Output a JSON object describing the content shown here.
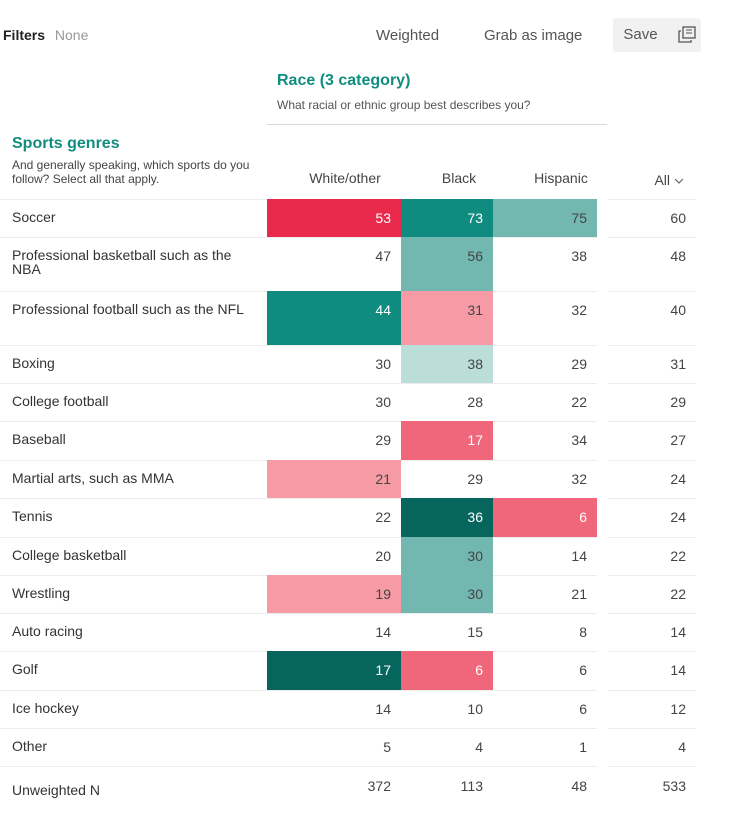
{
  "filters": {
    "label": "Filters",
    "value": "None"
  },
  "toolbar": {
    "weighted_label": "Weighted",
    "grab_label": "Grab as image",
    "save_label": "Save"
  },
  "column_variable": {
    "title": "Race (3 category)",
    "question": "What racial or ethnic group best describes you?"
  },
  "row_variable": {
    "title": "Sports genres",
    "question": "And generally speaking, which sports do you follow? Select all that apply."
  },
  "columns": [
    "White/other",
    "Black",
    "Hispanic"
  ],
  "all_label": "All",
  "colors": {
    "accent": "#118d80",
    "strong_red": "#ea2a4d",
    "red": "#f0667a",
    "light_red": "#f69ba6",
    "dark_teal": "#06665e",
    "teal": "#0f8b80",
    "light_teal": "#72b7b0",
    "pale_teal": "#bcdedb"
  },
  "rows": [
    {
      "label": "Soccer",
      "values": [
        "53",
        "73",
        "75"
      ],
      "all": "60",
      "shade": [
        "strong_red",
        "teal",
        "light_teal"
      ]
    },
    {
      "label": "Professional basketball such as the NBA",
      "values": [
        "47",
        "56",
        "38"
      ],
      "all": "48",
      "shade": [
        "",
        "light_teal",
        ""
      ]
    },
    {
      "label": "Professional football such as the NFL",
      "values": [
        "44",
        "31",
        "32"
      ],
      "all": "40",
      "shade": [
        "teal",
        "light_red",
        ""
      ]
    },
    {
      "label": "Boxing",
      "values": [
        "30",
        "38",
        "29"
      ],
      "all": "31",
      "shade": [
        "",
        "pale_teal",
        ""
      ]
    },
    {
      "label": "College football",
      "values": [
        "30",
        "28",
        "22"
      ],
      "all": "29",
      "shade": [
        "",
        "",
        ""
      ]
    },
    {
      "label": "Baseball",
      "values": [
        "29",
        "17",
        "34"
      ],
      "all": "27",
      "shade": [
        "",
        "red",
        ""
      ]
    },
    {
      "label": "Martial arts, such as MMA",
      "values": [
        "21",
        "29",
        "32"
      ],
      "all": "24",
      "shade": [
        "light_red",
        "",
        ""
      ]
    },
    {
      "label": "Tennis",
      "values": [
        "22",
        "36",
        "6"
      ],
      "all": "24",
      "shade": [
        "",
        "dark_teal",
        "red"
      ]
    },
    {
      "label": "College basketball",
      "values": [
        "20",
        "30",
        "14"
      ],
      "all": "22",
      "shade": [
        "",
        "light_teal",
        ""
      ]
    },
    {
      "label": "Wrestling",
      "values": [
        "19",
        "30",
        "21"
      ],
      "all": "22",
      "shade": [
        "light_red",
        "light_teal",
        ""
      ]
    },
    {
      "label": "Auto racing",
      "values": [
        "14",
        "15",
        "8"
      ],
      "all": "14",
      "shade": [
        "",
        "",
        ""
      ]
    },
    {
      "label": "Golf",
      "values": [
        "17",
        "6",
        "6"
      ],
      "all": "14",
      "shade": [
        "dark_teal",
        "red",
        ""
      ]
    },
    {
      "label": "Ice hockey",
      "values": [
        "14",
        "10",
        "6"
      ],
      "all": "12",
      "shade": [
        "",
        "",
        ""
      ]
    },
    {
      "label": "Other",
      "values": [
        "5",
        "4",
        "1"
      ],
      "all": "4",
      "shade": [
        "",
        "",
        ""
      ]
    }
  ],
  "unweighted": {
    "label": "Unweighted N",
    "values": [
      "372",
      "113",
      "48"
    ],
    "all": "533"
  }
}
